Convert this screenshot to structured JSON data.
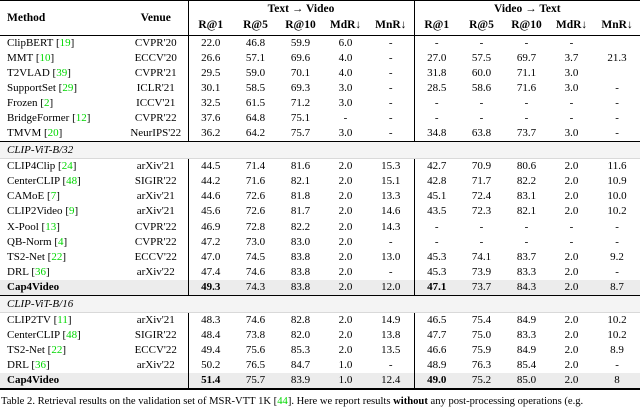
{
  "colors": {
    "citation_green": "#00d800",
    "highlight_row": "#ececec",
    "section_band": "#f4f4f4"
  },
  "table": {
    "header": {
      "method": "Method",
      "venue": "Venue",
      "groups": [
        "Text → Video",
        "Video → Text"
      ],
      "metrics": [
        "R@1",
        "R@5",
        "R@10",
        "MdR↓",
        "MnR↓"
      ]
    },
    "sections": [
      {
        "title": "",
        "rows": [
          {
            "method": "ClipBERT",
            "cite": "19",
            "venue": "CVPR'20",
            "t2v": [
              "22.0",
              "46.8",
              "59.9",
              "6.0",
              "-"
            ],
            "v2t": [
              "-",
              "-",
              "-",
              "-",
              ""
            ],
            "ours": false,
            "highlight": false
          },
          {
            "method": "MMT",
            "cite": "10",
            "venue": "ECCV'20",
            "t2v": [
              "26.6",
              "57.1",
              "69.6",
              "4.0",
              "-"
            ],
            "v2t": [
              "27.0",
              "57.5",
              "69.7",
              "3.7",
              "21.3"
            ],
            "ours": false,
            "highlight": false
          },
          {
            "method": "T2VLAD",
            "cite": "39",
            "venue": "CVPR'21",
            "t2v": [
              "29.5",
              "59.0",
              "70.1",
              "4.0",
              "-"
            ],
            "v2t": [
              "31.8",
              "60.0",
              "71.1",
              "3.0",
              ""
            ],
            "ours": false,
            "highlight": false
          },
          {
            "method": "SupportSet",
            "cite": "29",
            "venue": "ICLR'21",
            "t2v": [
              "30.1",
              "58.5",
              "69.3",
              "3.0",
              "-"
            ],
            "v2t": [
              "28.5",
              "58.6",
              "71.6",
              "3.0",
              "-"
            ],
            "ours": false,
            "highlight": false
          },
          {
            "method": "Frozen",
            "cite": "2",
            "venue": "ICCV'21",
            "t2v": [
              "32.5",
              "61.5",
              "71.2",
              "3.0",
              "-"
            ],
            "v2t": [
              "-",
              "-",
              "-",
              "-",
              "-"
            ],
            "ours": false,
            "highlight": false
          },
          {
            "method": "BridgeFormer",
            "cite": "12",
            "venue": "CVPR'22",
            "t2v": [
              "37.6",
              "64.8",
              "75.1",
              "-",
              "-"
            ],
            "v2t": [
              "-",
              "-",
              "-",
              "-",
              "-"
            ],
            "ours": false,
            "highlight": false
          },
          {
            "method": "TMVM",
            "cite": "20",
            "venue": "NeurIPS'22",
            "t2v": [
              "36.2",
              "64.2",
              "75.7",
              "3.0",
              "-"
            ],
            "v2t": [
              "34.8",
              "63.8",
              "73.7",
              "3.0",
              "-"
            ],
            "ours": false,
            "highlight": false
          }
        ]
      },
      {
        "title": "CLIP-ViT-B/32",
        "rows": [
          {
            "method": "CLIP4Clip",
            "cite": "24",
            "venue": "arXiv'21",
            "t2v": [
              "44.5",
              "71.4",
              "81.6",
              "2.0",
              "15.3"
            ],
            "v2t": [
              "42.7",
              "70.9",
              "80.6",
              "2.0",
              "11.6"
            ],
            "ours": false,
            "highlight": false
          },
          {
            "method": "CenterCLIP",
            "cite": "48",
            "venue": "SIGIR'22",
            "t2v": [
              "44.2",
              "71.6",
              "82.1",
              "2.0",
              "15.1"
            ],
            "v2t": [
              "42.8",
              "71.7",
              "82.2",
              "2.0",
              "10.9"
            ],
            "ours": false,
            "highlight": false
          },
          {
            "method": "CAMoE",
            "cite": "7",
            "venue": "arXiv'21",
            "t2v": [
              "44.6",
              "72.6",
              "81.8",
              "2.0",
              "13.3"
            ],
            "v2t": [
              "45.1",
              "72.4",
              "83.1",
              "2.0",
              "10.0"
            ],
            "ours": false,
            "highlight": false
          },
          {
            "method": "CLIP2Video",
            "cite": "9",
            "venue": "arXiv'21",
            "t2v": [
              "45.6",
              "72.6",
              "81.7",
              "2.0",
              "14.6"
            ],
            "v2t": [
              "43.5",
              "72.3",
              "82.1",
              "2.0",
              "10.2"
            ],
            "ours": false,
            "highlight": false
          },
          {
            "method": "X-Pool",
            "cite": "13",
            "venue": "CVPR'22",
            "t2v": [
              "46.9",
              "72.8",
              "82.2",
              "2.0",
              "14.3"
            ],
            "v2t": [
              "-",
              "-",
              "-",
              "-",
              "-"
            ],
            "ours": false,
            "highlight": false
          },
          {
            "method": "QB-Norm",
            "cite": "4",
            "venue": "CVPR'22",
            "t2v": [
              "47.2",
              "73.0",
              "83.0",
              "2.0",
              "-"
            ],
            "v2t": [
              "-",
              "-",
              "-",
              "-",
              "-"
            ],
            "ours": false,
            "highlight": false
          },
          {
            "method": "TS2-Net",
            "cite": "22",
            "venue": "ECCV'22",
            "t2v": [
              "47.0",
              "74.5",
              "83.8",
              "2.0",
              "13.0"
            ],
            "v2t": [
              "45.3",
              "74.1",
              "83.7",
              "2.0",
              "9.2"
            ],
            "ours": false,
            "highlight": false
          },
          {
            "method": "DRL",
            "cite": "36",
            "venue": "arXiv'22",
            "t2v": [
              "47.4",
              "74.6",
              "83.8",
              "2.0",
              "-"
            ],
            "v2t": [
              "45.3",
              "73.9",
              "83.3",
              "2.0",
              "-"
            ],
            "ours": false,
            "highlight": false
          },
          {
            "method": "Cap4Video",
            "cite": "",
            "venue": "",
            "t2v": [
              "49.3",
              "74.3",
              "83.8",
              "2.0",
              "12.0"
            ],
            "v2t": [
              "47.1",
              "73.7",
              "84.3",
              "2.0",
              "8.7"
            ],
            "ours": true,
            "highlight": true
          }
        ]
      },
      {
        "title": "CLIP-ViT-B/16",
        "rows": [
          {
            "method": "CLIP2TV",
            "cite": "11",
            "venue": "arXiv'21",
            "t2v": [
              "48.3",
              "74.6",
              "82.8",
              "2.0",
              "14.9"
            ],
            "v2t": [
              "46.5",
              "75.4",
              "84.9",
              "2.0",
              "10.2"
            ],
            "ours": false,
            "highlight": false
          },
          {
            "method": "CenterCLIP",
            "cite": "48",
            "venue": "SIGIR'22",
            "t2v": [
              "48.4",
              "73.8",
              "82.0",
              "2.0",
              "13.8"
            ],
            "v2t": [
              "47.7",
              "75.0",
              "83.3",
              "2.0",
              "10.2"
            ],
            "ours": false,
            "highlight": false
          },
          {
            "method": "TS2-Net",
            "cite": "22",
            "venue": "ECCV'22",
            "t2v": [
              "49.4",
              "75.6",
              "85.3",
              "2.0",
              "13.5"
            ],
            "v2t": [
              "46.6",
              "75.9",
              "84.9",
              "2.0",
              "8.9"
            ],
            "ours": false,
            "highlight": false
          },
          {
            "method": "DRL",
            "cite": "36",
            "venue": "arXiv'22",
            "t2v": [
              "50.2",
              "76.5",
              "84.7",
              "1.0",
              "-"
            ],
            "v2t": [
              "48.9",
              "76.3",
              "85.4",
              "2.0",
              "-"
            ],
            "ours": false,
            "highlight": false
          },
          {
            "method": "Cap4Video",
            "cite": "",
            "venue": "",
            "t2v": [
              "51.4",
              "75.7",
              "83.9",
              "1.0",
              "12.4"
            ],
            "v2t": [
              "49.0",
              "75.2",
              "85.0",
              "2.0",
              "8"
            ],
            "ours": true,
            "highlight": true
          }
        ]
      }
    ]
  },
  "caption": {
    "pre": "Table 2. Retrieval results on the validation set of MSR-VTT 1K [",
    "cite": "44",
    "mid": "]. Here we report results ",
    "bold": "without",
    "post": " any post-processing operations (e.g."
  }
}
